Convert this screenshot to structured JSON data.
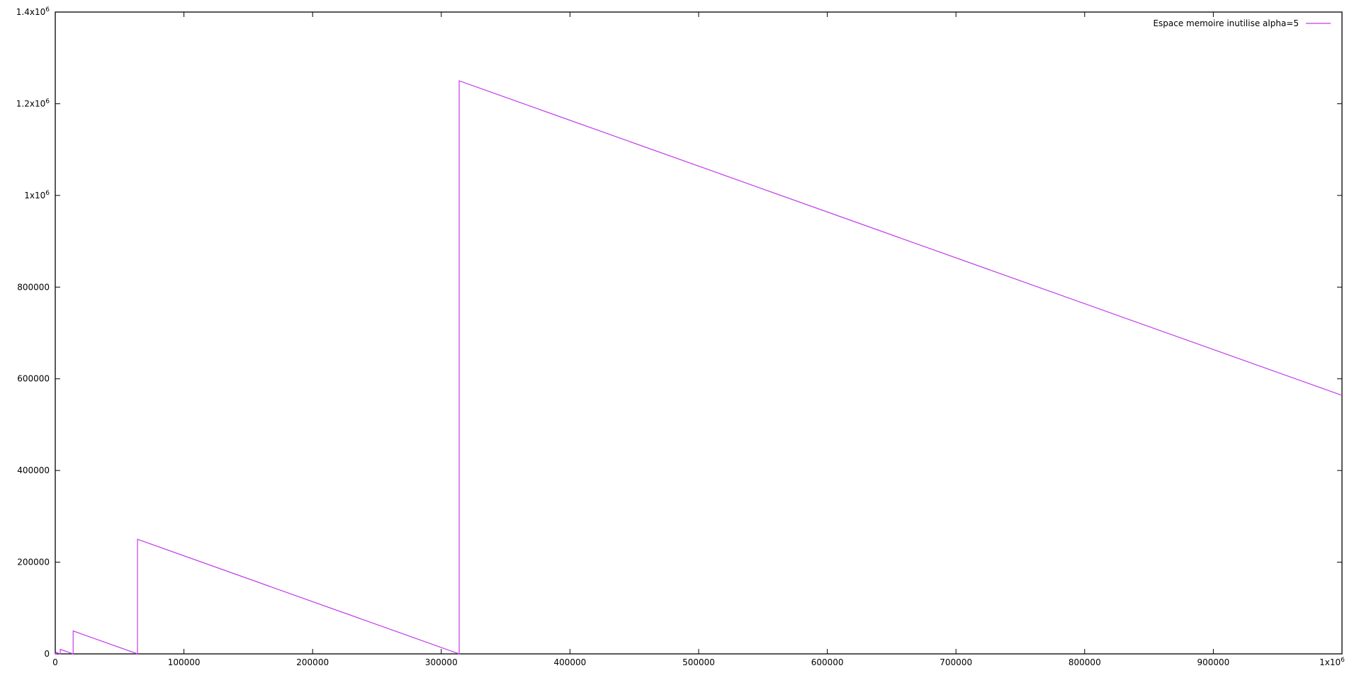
{
  "chart_data": {
    "type": "line",
    "title": "",
    "xlabel": "",
    "ylabel": "",
    "xlim": [
      0,
      1000000
    ],
    "ylim": [
      0,
      1400000
    ],
    "x_ticks": [
      0,
      100000,
      200000,
      300000,
      400000,
      500000,
      600000,
      700000,
      800000,
      900000,
      1000000
    ],
    "x_tick_labels": [
      "0",
      "100000",
      "200000",
      "300000",
      "400000",
      "500000",
      "600000",
      "700000",
      "800000",
      "900000",
      "1x10^6"
    ],
    "y_ticks": [
      0,
      200000,
      400000,
      600000,
      800000,
      1000000,
      1200000,
      1400000
    ],
    "y_tick_labels": [
      "0",
      "200000",
      "400000",
      "600000",
      "800000",
      "1x10^6",
      "1.2x10^6",
      "1.4x10^6"
    ],
    "grid": false,
    "legend_position": "top-right",
    "series": [
      {
        "name": "Espace memoire inutilise alpha=5",
        "color": "#c33ced",
        "points": [
          [
            0,
            0
          ],
          [
            0,
            1
          ],
          [
            1,
            0
          ],
          [
            1,
            5
          ],
          [
            2,
            0
          ],
          [
            2,
            25
          ],
          [
            27,
            0
          ],
          [
            27,
            125
          ],
          [
            152,
            0
          ],
          [
            152,
            625
          ],
          [
            777,
            0
          ],
          [
            777,
            3125
          ],
          [
            2000,
            1902
          ],
          [
            3902,
            0
          ],
          [
            3902,
            10000
          ],
          [
            12000,
            1902
          ],
          [
            13902,
            0
          ],
          [
            13902,
            50000
          ],
          [
            63902,
            0
          ],
          [
            63902,
            250000
          ],
          [
            313902,
            0
          ],
          [
            313902,
            1250000
          ],
          [
            1000000,
            563902
          ]
        ]
      }
    ]
  }
}
